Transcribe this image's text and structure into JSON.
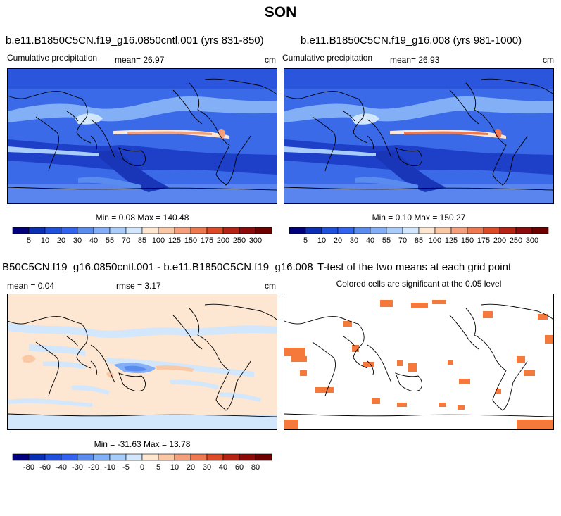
{
  "page_title": "SON",
  "panels": [
    {
      "case_title": "b.e11.B1850C5CN.f19_g16.0850cntl.001 (yrs 831-850)",
      "left_label": "Cumulative precipitation",
      "center_label": "mean=  26.97",
      "right_label": "cm",
      "minmax": "Min =   0.08 Max = 140.48"
    },
    {
      "case_title": "b.e11.B1850C5CN.f19_g16.008 (yrs 981-1000)",
      "left_label": "Cumulative precipitation",
      "center_label": "mean=  26.93",
      "right_label": "cm",
      "minmax": "Min =   0.10 Max = 150.27"
    },
    {
      "case_title": "B50C5CN.f19_g16.0850cntl.001 - b.e11.B1850C5CN.f19_g16.008",
      "left_label": "mean =   0.04",
      "center_label": "rmse =   3.17",
      "right_label": "cm",
      "minmax": "Min = -31.63 Max =  13.78"
    },
    {
      "case_title": "T-test of the two means at each grid point",
      "subtitle": "Colored cells are significant at the 0.05 level"
    }
  ],
  "colorbars": {
    "precip": {
      "labels": [
        "5",
        "10",
        "20",
        "30",
        "40",
        "55",
        "70",
        "85",
        "100",
        "125",
        "150",
        "175",
        "200",
        "250",
        "300"
      ],
      "colors": [
        "#00007f",
        "#0a2fb4",
        "#1e50dc",
        "#3264f0",
        "#5a8cf0",
        "#82aff5",
        "#a8cdfa",
        "#d2e6fc",
        "#fde6d2",
        "#fbc8a5",
        "#f5a07d",
        "#ee7850",
        "#dc4a28",
        "#b42314",
        "#8c0a0a",
        "#6e0000"
      ]
    },
    "diff": {
      "labels": [
        "-80",
        "-60",
        "-40",
        "-30",
        "-20",
        "-10",
        "-5",
        "0",
        "5",
        "10",
        "20",
        "30",
        "40",
        "60",
        "80"
      ],
      "colors": [
        "#00007f",
        "#0a2fb4",
        "#1e50dc",
        "#3264f0",
        "#5a8cf0",
        "#82aff5",
        "#a8cdfa",
        "#d2e6fc",
        "#fde6d2",
        "#fbc8a5",
        "#f5a07d",
        "#ee7850",
        "#dc4a28",
        "#b42314",
        "#8c0a0a",
        "#6e0000"
      ]
    }
  },
  "chart_data": [
    {
      "type": "heatmap",
      "title": "b.e11.B1850C5CN.f19_g16.0850cntl.001 (yrs 831-850)",
      "variable": "Cumulative precipitation",
      "units": "cm",
      "mean": 26.97,
      "min": 0.08,
      "max": 140.48,
      "contour_levels": [
        5,
        10,
        20,
        30,
        40,
        55,
        70,
        85,
        100,
        125,
        150,
        175,
        200,
        250,
        300
      ]
    },
    {
      "type": "heatmap",
      "title": "b.e11.B1850C5CN.f19_g16.008 (yrs 981-1000)",
      "variable": "Cumulative precipitation",
      "units": "cm",
      "mean": 26.93,
      "min": 0.1,
      "max": 150.27,
      "contour_levels": [
        5,
        10,
        20,
        30,
        40,
        55,
        70,
        85,
        100,
        125,
        150,
        175,
        200,
        250,
        300
      ]
    },
    {
      "type": "heatmap",
      "title": "B50C5CN.f19_g16.0850cntl.001 - b.e11.B1850C5CN.f19_g16.008",
      "units": "cm",
      "mean": 0.04,
      "rmse": 3.17,
      "min": -31.63,
      "max": 13.78,
      "contour_levels": [
        -80,
        -60,
        -40,
        -30,
        -20,
        -10,
        -5,
        0,
        5,
        10,
        20,
        30,
        40,
        60,
        80
      ]
    },
    {
      "type": "heatmap",
      "title": "T-test of the two means at each grid point",
      "subtitle": "Colored cells are significant at the 0.05 level",
      "significance_level": 0.05
    }
  ]
}
